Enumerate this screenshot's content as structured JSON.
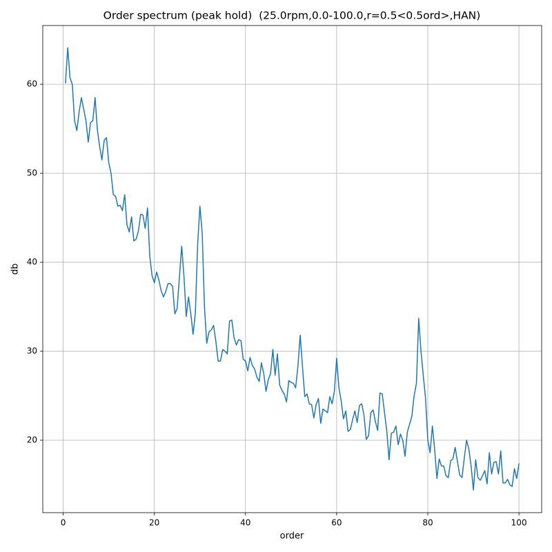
{
  "chart_data": {
    "type": "line",
    "title": "Order spectrum (peak hold)  (25.0rpm,0.0-100.0,r=0.5<0.5ord>,HAN)",
    "xlabel": "order",
    "ylabel": "db",
    "color": "#1f77b4",
    "grid": true,
    "xlim": [
      -4.475,
      104.975
    ],
    "ylim": [
      11.86,
      66.6
    ],
    "xticks": [
      0,
      20,
      40,
      60,
      80,
      100
    ],
    "yticks": [
      20,
      30,
      40,
      50,
      60
    ],
    "x": [
      0.5,
      1,
      1.5,
      2,
      2.5,
      3,
      3.5,
      4,
      4.5,
      5,
      5.5,
      6,
      6.5,
      7,
      7.5,
      8,
      8.5,
      9,
      9.5,
      10,
      10.5,
      11,
      11.5,
      12,
      12.5,
      13,
      13.5,
      14,
      14.5,
      15,
      15.5,
      16,
      16.5,
      17,
      17.5,
      18,
      18.5,
      19,
      19.5,
      20,
      20.5,
      21,
      21.5,
      22,
      22.5,
      23,
      23.5,
      24,
      24.5,
      25,
      25.5,
      26,
      26.5,
      27,
      27.5,
      28,
      28.5,
      29,
      29.5,
      30,
      30.5,
      31,
      31.5,
      32,
      32.5,
      33,
      33.5,
      34,
      34.5,
      35,
      35.5,
      36,
      36.5,
      37,
      37.5,
      38,
      38.5,
      39,
      39.5,
      40,
      40.5,
      41,
      41.5,
      42,
      42.5,
      43,
      43.5,
      44,
      44.5,
      45,
      45.5,
      46,
      46.5,
      47,
      47.5,
      48,
      48.5,
      49,
      49.5,
      50,
      50.5,
      51,
      51.5,
      52,
      52.5,
      53,
      53.5,
      54,
      54.5,
      55,
      55.5,
      56,
      56.5,
      57,
      57.5,
      58,
      58.5,
      59,
      59.5,
      60,
      60.5,
      61,
      61.5,
      62,
      62.5,
      63,
      63.5,
      64,
      64.5,
      65,
      65.5,
      66,
      66.5,
      67,
      67.5,
      68,
      68.5,
      69,
      69.5,
      70,
      70.5,
      71,
      71.5,
      72,
      72.5,
      73,
      73.5,
      74,
      74.5,
      75,
      75.5,
      76,
      76.5,
      77,
      77.5,
      78,
      78.5,
      79,
      79.5,
      80,
      80.5,
      81,
      81.5,
      82,
      82.5,
      83,
      83.5,
      84,
      84.5,
      85,
      85.5,
      86,
      86.5,
      87,
      87.5,
      88,
      88.5,
      89,
      89.5,
      90,
      90.5,
      91,
      91.5,
      92,
      92.5,
      93,
      93.5,
      94,
      94.5,
      95,
      95.5,
      96,
      96.5,
      97,
      97.5,
      98,
      98.5,
      99,
      99.5,
      100
    ],
    "values": [
      60.1,
      64.1,
      60.7,
      60.0,
      55.9,
      54.8,
      56.9,
      58.5,
      57.2,
      55.9,
      53.5,
      55.7,
      55.9,
      58.5,
      54.9,
      53.0,
      51.5,
      53.7,
      54.0,
      51.2,
      50.0,
      47.6,
      47.4,
      46.3,
      46.4,
      45.8,
      47.6,
      44.2,
      43.4,
      45.1,
      42.4,
      42.6,
      43.5,
      45.4,
      45.3,
      43.8,
      46.1,
      40.7,
      38.5,
      37.7,
      38.9,
      38.0,
      36.8,
      36.1,
      36.7,
      37.6,
      37.6,
      37.3,
      34.2,
      34.8,
      38.3,
      41.8,
      38.4,
      33.9,
      36.1,
      34.2,
      31.9,
      34.3,
      42.0,
      46.3,
      43.3,
      35.0,
      30.9,
      32.2,
      32.4,
      32.9,
      31.1,
      28.9,
      28.9,
      30.2,
      30.0,
      29.7,
      33.4,
      33.5,
      31.5,
      30.7,
      31.3,
      31.2,
      29.1,
      28.9,
      27.8,
      29.3,
      28.4,
      28.0,
      27.1,
      26.6,
      28.7,
      27.5,
      25.5,
      26.8,
      27.5,
      30.2,
      27.3,
      29.7,
      26.2,
      25.6,
      25.2,
      24.3,
      26.7,
      26.5,
      26.4,
      25.9,
      28.3,
      31.8,
      28.3,
      24.9,
      25.2,
      24.1,
      24.0,
      22.5,
      24.0,
      24.7,
      21.9,
      23.5,
      23.3,
      23.1,
      24.9,
      24.1,
      25.5,
      29.2,
      25.9,
      24.4,
      22.4,
      23.3,
      21.0,
      21.2,
      22.3,
      23.3,
      22.0,
      23.9,
      24.1,
      22.8,
      20.1,
      20.5,
      23.1,
      23.4,
      22.1,
      21.1,
      25.3,
      25.2,
      23.1,
      21.0,
      17.8,
      20.8,
      20.9,
      21.6,
      19.5,
      20.7,
      20.0,
      18.2,
      20.9,
      21.8,
      22.7,
      25.0,
      26.4,
      33.7,
      30.0,
      27.3,
      24.7,
      20.0,
      18.6,
      21.6,
      19.0,
      15.7,
      17.9,
      17.1,
      17.1,
      16.0,
      15.8,
      17.7,
      17.9,
      19.2,
      17.6,
      16.1,
      15.8,
      18.0,
      20.0,
      19.0,
      17.1,
      14.4,
      17.8,
      15.8,
      15.5,
      16.0,
      16.6,
      15.1,
      18.6,
      16.2,
      17.5,
      17.6,
      16.2,
      18.8,
      15.2,
      15.2,
      15.6,
      15.0,
      14.8,
      16.8,
      15.7,
      17.4
    ]
  }
}
